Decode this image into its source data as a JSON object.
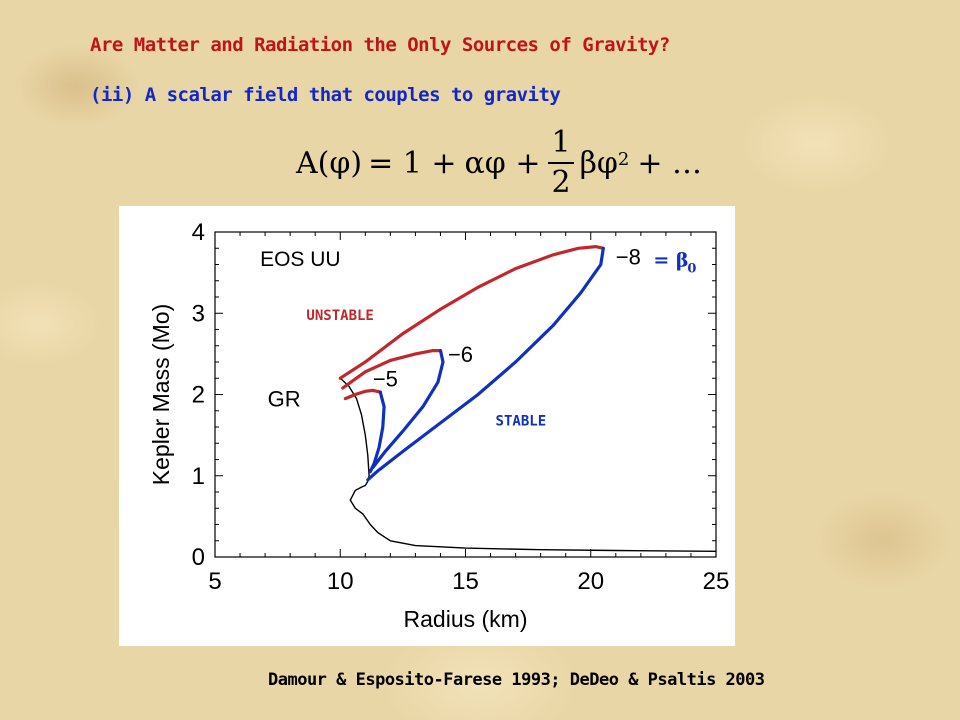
{
  "slide": {
    "title": "Are Matter and Radiation the Only Sources of Gravity?",
    "subtitle": "(ii) A scalar field that couples to gravity",
    "equation": {
      "lhs": "A(φ)",
      "eq": "= 1 +",
      "t1": "αφ +",
      "num": "1",
      "den": "2",
      "t2": "βφ",
      "exp": "2",
      "tail": "+ …"
    },
    "citation": "Damour & Esposito-Farese 1993; DeDeo & Psaltis 2003"
  },
  "colors": {
    "unstable": "#c0282e",
    "stable": "#1030c0",
    "gr": "#000000",
    "title": "#c0141c",
    "subtitle": "#1326c8"
  },
  "chart_data": {
    "type": "line",
    "xlabel": "Radius (km)",
    "ylabel": "Kepler Mass (Mo)",
    "xlim": [
      5,
      25
    ],
    "ylim": [
      0,
      4
    ],
    "xticks": [
      5,
      10,
      15,
      20,
      25
    ],
    "yticks": [
      0,
      1,
      2,
      3,
      4
    ],
    "grid": false,
    "panel_label": "EOS UU",
    "annotations": {
      "unstable": "UNSTABLE",
      "stable": "STABLE",
      "beta_label": "= β",
      "beta_sub": "0"
    },
    "series": [
      {
        "name": "GR",
        "role": "gr",
        "x": [
          10.0,
          10.35,
          10.65,
          10.85,
          11.0,
          11.1,
          11.15,
          11.1,
          11.0,
          10.85,
          10.6,
          10.4,
          10.6,
          10.9,
          11.2,
          11.5,
          12.0,
          13.0,
          15.0,
          18.0,
          21.0,
          25.0
        ],
        "y": [
          2.2,
          2.1,
          1.95,
          1.75,
          1.5,
          1.25,
          1.0,
          0.93,
          0.88,
          0.86,
          0.82,
          0.7,
          0.6,
          0.53,
          0.4,
          0.3,
          0.2,
          0.14,
          0.11,
          0.09,
          0.08,
          0.07
        ]
      },
      {
        "name": "−5",
        "label_at": [
          11.3,
          2.2
        ],
        "unstable": {
          "x": [
            10.2,
            10.6,
            11.0,
            11.3,
            11.6
          ],
          "y": [
            1.95,
            2.0,
            2.04,
            2.05,
            2.03
          ]
        },
        "stable": {
          "x": [
            11.6,
            11.75,
            11.7,
            11.55,
            11.35,
            11.2
          ],
          "y": [
            2.03,
            1.85,
            1.6,
            1.35,
            1.15,
            1.05
          ]
        }
      },
      {
        "name": "−6",
        "label_at": [
          14.3,
          2.5
        ],
        "unstable": {
          "x": [
            10.1,
            11.0,
            12.0,
            13.0,
            13.7,
            14.0
          ],
          "y": [
            2.08,
            2.28,
            2.42,
            2.5,
            2.54,
            2.54
          ]
        },
        "stable": {
          "x": [
            14.0,
            14.1,
            13.9,
            13.3,
            12.5,
            11.8,
            11.3
          ],
          "y": [
            2.54,
            2.4,
            2.15,
            1.85,
            1.55,
            1.3,
            1.1
          ]
        }
      },
      {
        "name": "−8",
        "label_at": [
          21.0,
          3.7
        ],
        "unstable": {
          "x": [
            10.0,
            11.0,
            12.5,
            14.0,
            15.5,
            17.0,
            18.5,
            19.5,
            20.2,
            20.5
          ],
          "y": [
            2.2,
            2.4,
            2.75,
            3.05,
            3.32,
            3.55,
            3.72,
            3.8,
            3.82,
            3.8
          ]
        },
        "stable": {
          "x": [
            20.5,
            20.4,
            19.6,
            18.5,
            17.0,
            15.5,
            14.0,
            12.5,
            11.5,
            11.1
          ],
          "y": [
            3.8,
            3.6,
            3.25,
            2.85,
            2.4,
            2.0,
            1.65,
            1.3,
            1.06,
            0.95
          ]
        }
      }
    ]
  }
}
